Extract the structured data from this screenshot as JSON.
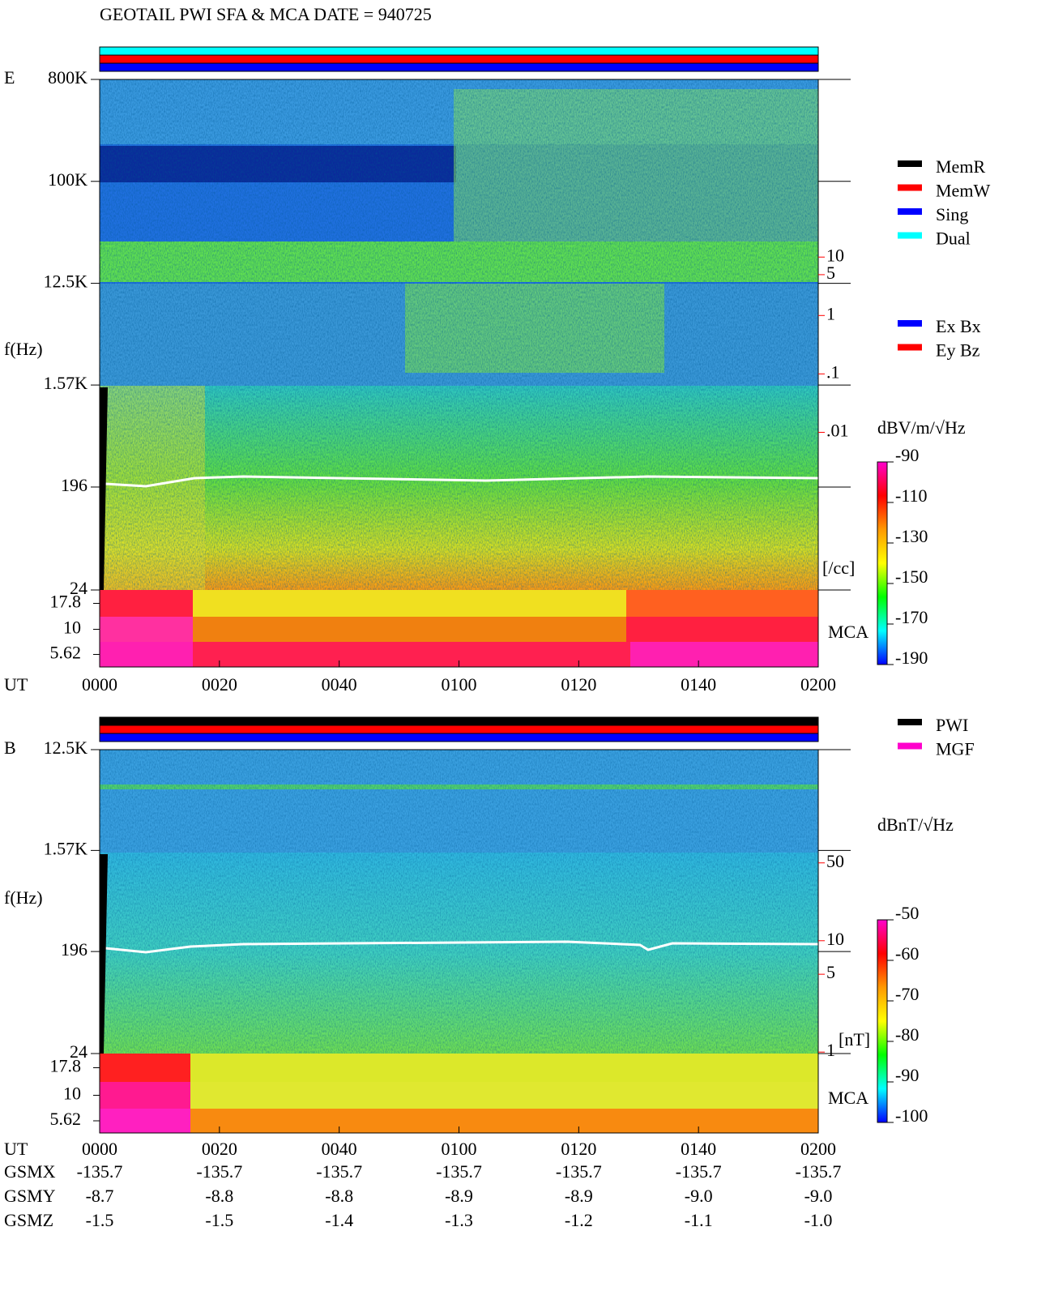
{
  "title": "GEOTAIL  PWI SFA & MCA   DATE = 940725",
  "colormap": [
    "#ff00cc",
    "#ff0000",
    "#ff9900",
    "#ffff00",
    "#00ff00",
    "#00ffff",
    "#0000ff"
  ],
  "panels": [
    {
      "label": "E",
      "y_axis_label": "f(Hz)",
      "mode_bar_colors": [
        "#00ffff",
        "#ff0000",
        "#0000ff"
      ],
      "freq_lim": [
        24,
        800000
      ],
      "freq_ticks": [
        {
          "value": 800000,
          "label": "800K"
        },
        {
          "value": 100000,
          "label": "100K"
        },
        {
          "value": 12500,
          "label": "12.5K"
        },
        {
          "value": 1570,
          "label": "1.57K"
        },
        196,
        24
      ],
      "mca_label": "MCA",
      "mca_ticks": [
        17.8,
        10,
        5.62
      ],
      "ut_label": "UT",
      "time_ticks": [
        "0000",
        "0020",
        "0040",
        "0100",
        "0120",
        "0140",
        "0200"
      ],
      "right_axis": {
        "unit": "[/cc]",
        "log": true,
        "lim": [
          2e-05,
          11000
        ],
        "color": "#ff0000",
        "ticks": [
          10,
          5,
          1,
          {
            "value": 0.1,
            "label": ".1"
          },
          {
            "value": 0.01,
            "label": ".01"
          }
        ]
      },
      "colorbar": {
        "unit": "dBV/m/√Hz",
        "lim": [
          -190,
          -90
        ],
        "ticks": [
          -90,
          -110,
          -130,
          -150,
          -170,
          -190
        ]
      },
      "legends": [
        [
          {
            "name": "MemR",
            "color": "#000000"
          },
          {
            "name": "MemW",
            "color": "#ff0000"
          },
          {
            "name": "Sing",
            "color": "#0000ff"
          },
          {
            "name": "Dual",
            "color": "#00ffff"
          }
        ],
        [
          {
            "name": "Ex Bx",
            "color": "#0000ff"
          },
          {
            "name": "Ey Bz",
            "color": "#ff0000"
          }
        ]
      ]
    },
    {
      "label": "B",
      "y_axis_label": "f(Hz)",
      "mode_bar_colors": [
        "#000000",
        "#ff0000",
        "#0000ff"
      ],
      "freq_lim": [
        24,
        12500
      ],
      "freq_ticks": [
        {
          "value": 12500,
          "label": "12.5K"
        },
        {
          "value": 1570,
          "label": "1.57K"
        },
        196,
        24
      ],
      "mca_label": "MCA",
      "mca_ticks": [
        17.8,
        10,
        5.62
      ],
      "ut_label": "UT",
      "time_ticks": [
        "0000",
        "0020",
        "0040",
        "0100",
        "0120",
        "0140",
        "0200"
      ],
      "right_axis": {
        "unit": "[nT]",
        "log": true,
        "lim": [
          0.97,
          520
        ],
        "color": "#ff0000",
        "ticks": [
          50,
          10,
          5,
          1
        ]
      },
      "colorbar": {
        "unit": "dBnT/√Hz",
        "lim": [
          -100,
          -50
        ],
        "ticks": [
          -50,
          -60,
          -70,
          -80,
          -90,
          -100
        ]
      },
      "legends": [
        [
          {
            "name": "PWI",
            "color": "#000000"
          },
          {
            "name": "MGF",
            "color": "#ff00cc"
          }
        ]
      ]
    }
  ],
  "ephemeris": {
    "rows": [
      {
        "name": "GSMX",
        "values": [
          "-135.7",
          "-135.7",
          "-135.7",
          "-135.7",
          "-135.7",
          "-135.7",
          "-135.7"
        ]
      },
      {
        "name": "GSMY",
        "values": [
          "-8.7",
          "-8.8",
          "-8.8",
          "-8.9",
          "-8.9",
          "-9.0",
          "-9.0"
        ]
      },
      {
        "name": "GSMZ",
        "values": [
          "-1.5",
          "-1.5",
          "-1.4",
          "-1.3",
          "-1.2",
          "-1.1",
          "-1.0"
        ]
      }
    ]
  }
}
